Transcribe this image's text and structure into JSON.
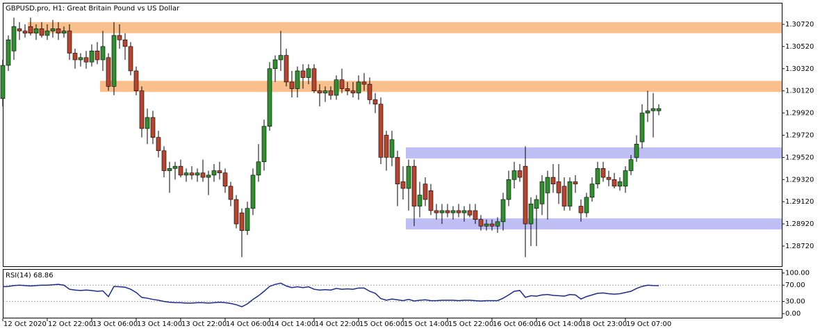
{
  "chart_data": {
    "type": "candlestick",
    "title": "GBPUSD.pro, H1:  Great Britain Pound vs US Dollar",
    "categories": [
      "12 Oct 2020",
      null,
      null,
      null,
      null,
      null,
      null,
      null,
      "12 Oct 22:00",
      null,
      null,
      null,
      null,
      null,
      null,
      null,
      "13 Oct 06:00",
      null,
      null,
      null,
      null,
      null,
      null,
      null,
      "13 Oct 14:00",
      null,
      null,
      null,
      null,
      null,
      null,
      null,
      "13 Oct 22:00",
      null,
      null,
      null,
      null,
      null,
      null,
      null,
      "14 Oct 06:00",
      null,
      null,
      null,
      null,
      null,
      null,
      null,
      "14 Oct 14:00",
      null,
      null,
      null,
      null,
      null,
      null,
      null,
      "14 Oct 22:00",
      null,
      null,
      null,
      null,
      null,
      null,
      null,
      "15 Oct 06:00",
      null,
      null,
      null,
      null,
      null,
      null,
      null,
      "15 Oct 14:00",
      null,
      null,
      null,
      null,
      null,
      null,
      null,
      "15 Oct 22:00",
      null,
      null,
      null,
      null,
      null,
      null,
      null,
      "16 Oct 06:00",
      null,
      null,
      null,
      null,
      null,
      null,
      null,
      "16 Oct 14:00",
      null,
      null,
      null,
      null,
      null,
      null,
      null,
      "18 Oct 23:00",
      null,
      null,
      null,
      null,
      null,
      null,
      null,
      "19 Oct 07:00",
      null,
      null,
      null,
      null,
      null,
      null
    ],
    "open": [
      1.3005,
      1.3035,
      1.3048,
      1.3068,
      1.3066,
      1.307,
      1.3064,
      1.3068,
      1.3062,
      1.3066,
      1.3068,
      1.3064,
      1.3066,
      1.3046,
      1.304,
      1.3042,
      1.3038,
      1.3048,
      1.304,
      1.3042,
      1.3016,
      1.3062,
      1.3058,
      1.3052,
      1.303,
      1.3012,
      1.2978,
      1.2988,
      1.297,
      1.2958,
      1.294,
      1.2942,
      1.2944,
      1.2936,
      1.2938,
      1.2936,
      1.2938,
      1.2934,
      1.2936,
      1.294,
      1.2938,
      1.2926,
      1.2914,
      1.2902,
      1.2886,
      1.2906,
      1.2936,
      1.2948,
      1.298,
      1.3032,
      1.304,
      1.3044,
      1.302,
      1.3014,
      1.303,
      1.3024,
      1.3032,
      1.3012,
      1.301,
      1.3012,
      1.3008,
      1.3022,
      1.3014,
      1.3012,
      1.301,
      1.302,
      1.3018,
      1.3004,
      1.3,
      1.2972,
      1.2952,
      1.2952,
      1.293,
      1.2924,
      1.2944,
      1.2908,
      1.2928,
      1.2922,
      1.2904,
      1.2902,
      1.2904,
      1.2902,
      1.2904,
      1.2902,
      1.2904,
      1.2904,
      1.2896,
      1.289,
      1.2892,
      1.289,
      1.2894,
      1.2914,
      1.2932,
      1.294,
      1.2944,
      1.2892,
      1.2906,
      1.291,
      1.292,
      1.2934,
      1.293,
      1.2926,
      1.2908,
      1.293,
      1.2908,
      1.2902,
      1.2916,
      1.2928,
      1.2942,
      1.2934,
      1.2932,
      1.2926,
      1.2926,
      1.294,
      1.2952,
      1.2966,
      1.2992,
      1.2994,
      1.2994
    ],
    "high": [
      1.304,
      1.3062,
      1.3078,
      1.3074,
      1.3072,
      1.3078,
      1.3072,
      1.3074,
      1.3072,
      1.3076,
      1.3074,
      1.307,
      1.3072,
      1.305,
      1.3046,
      1.3048,
      1.3054,
      1.3056,
      1.3066,
      1.3046,
      1.3074,
      1.3072,
      1.3064,
      1.3056,
      1.3034,
      1.3016,
      1.2996,
      1.2994,
      1.2976,
      1.2962,
      1.2948,
      1.2948,
      1.295,
      1.2942,
      1.2944,
      1.2942,
      1.295,
      1.294,
      1.2946,
      1.2948,
      1.2942,
      1.293,
      1.2918,
      1.2906,
      1.2912,
      1.2942,
      1.2964,
      1.2986,
      1.3038,
      1.3044,
      1.3066,
      1.305,
      1.303,
      1.3034,
      1.3036,
      1.3036,
      1.3036,
      1.3018,
      1.3016,
      1.3016,
      1.3026,
      1.3032,
      1.302,
      1.302,
      1.3026,
      1.3028,
      1.3024,
      1.301,
      1.3006,
      1.2976,
      1.2976,
      1.2958,
      1.2944,
      1.295,
      1.295,
      1.293,
      1.2934,
      1.2928,
      1.291,
      1.291,
      1.291,
      1.2908,
      1.291,
      1.2908,
      1.291,
      1.291,
      1.29,
      1.2896,
      1.2896,
      1.2898,
      1.292,
      1.294,
      1.2948,
      1.2946,
      1.2962,
      1.2916,
      1.2918,
      1.2936,
      1.294,
      1.2946,
      1.2946,
      1.2934,
      1.2934,
      1.2936,
      1.2914,
      1.292,
      1.2934,
      1.2948,
      1.2948,
      1.294,
      1.2938,
      1.2934,
      1.2944,
      1.2954,
      1.2972,
      1.3,
      1.3012,
      1.301,
      1.3
    ],
    "low": [
      1.2998,
      1.303,
      1.304,
      1.3058,
      1.306,
      1.3062,
      1.3058,
      1.306,
      1.3058,
      1.306,
      1.3058,
      1.306,
      1.304,
      1.3032,
      1.3034,
      1.3032,
      1.3034,
      1.3036,
      1.303,
      1.3012,
      1.3008,
      1.305,
      1.304,
      1.3026,
      1.3008,
      1.297,
      1.2964,
      1.2964,
      1.2952,
      1.2934,
      1.292,
      1.2932,
      1.2934,
      1.293,
      1.2932,
      1.293,
      1.293,
      1.2918,
      1.293,
      1.2932,
      1.292,
      1.2908,
      1.2888,
      1.2862,
      1.2882,
      1.29,
      1.293,
      1.294,
      1.2976,
      1.302,
      1.303,
      1.3016,
      1.3006,
      1.3006,
      1.3014,
      1.3018,
      1.301,
      1.2998,
      1.3002,
      1.3004,
      1.3004,
      1.301,
      1.3008,
      1.3006,
      1.3004,
      1.3012,
      1.3,
      1.2992,
      1.2946,
      1.294,
      1.2944,
      1.2908,
      1.2914,
      1.2904,
      1.289,
      1.2898,
      1.2908,
      1.29,
      1.2896,
      1.2892,
      1.2898,
      1.2896,
      1.2898,
      1.2894,
      1.2898,
      1.2892,
      1.2886,
      1.2886,
      1.2886,
      1.2884,
      1.2886,
      1.2908,
      1.2924,
      1.293,
      1.2862,
      1.2872,
      1.2872,
      1.29,
      1.2896,
      1.292,
      1.291,
      1.2904,
      1.2904,
      1.292,
      1.2894,
      1.2898,
      1.2912,
      1.2924,
      1.293,
      1.2926,
      1.2924,
      1.2922,
      1.292,
      1.2936,
      1.2948,
      1.296,
      1.2984,
      1.297,
      1.299
    ],
    "close": [
      1.3035,
      1.3058,
      1.307,
      1.3066,
      1.3064,
      1.3064,
      1.3068,
      1.3062,
      1.3066,
      1.3068,
      1.3064,
      1.3066,
      1.3046,
      1.304,
      1.3042,
      1.3038,
      1.3048,
      1.304,
      1.3052,
      1.3016,
      1.3062,
      1.3058,
      1.3052,
      1.303,
      1.3012,
      1.2978,
      1.2988,
      1.297,
      1.2958,
      1.294,
      1.2942,
      1.2944,
      1.2936,
      1.2938,
      1.2936,
      1.2938,
      1.2934,
      1.2936,
      1.294,
      1.2938,
      1.2926,
      1.2914,
      1.2892,
      1.2886,
      1.2906,
      1.2936,
      1.2948,
      1.298,
      1.3032,
      1.304,
      1.3044,
      1.302,
      1.3014,
      1.303,
      1.3024,
      1.3032,
      1.3012,
      1.301,
      1.3012,
      1.3008,
      1.3022,
      1.3014,
      1.3012,
      1.301,
      1.302,
      1.3018,
      1.3004,
      1.3,
      1.2952,
      1.2952,
      1.2968,
      1.2928,
      1.2924,
      1.2944,
      1.2908,
      1.2918,
      1.2914,
      1.2904,
      1.2902,
      1.2904,
      1.2902,
      1.2904,
      1.2902,
      1.2904,
      1.29,
      1.2896,
      1.289,
      1.2892,
      1.289,
      1.2894,
      1.2914,
      1.2932,
      1.294,
      1.2934,
      1.2892,
      1.291,
      1.2914,
      1.293,
      1.2934,
      1.2928,
      1.292,
      1.2908,
      1.293,
      1.2928,
      1.2902,
      1.2916,
      1.2928,
      1.2942,
      1.2934,
      1.2932,
      1.2926,
      1.293,
      1.294,
      1.295,
      1.2964,
      1.2992,
      1.2994,
      1.2996,
      1.2996
    ],
    "bull_color": "#2f8f2f",
    "bear_color": "#b8452f",
    "ylim": [
      1.28538,
      1.30908
    ],
    "yticks": [
      {
        "value": 1.3072,
        "label": "1.30720"
      },
      {
        "value": 1.3052,
        "label": "1.30520"
      },
      {
        "value": 1.3032,
        "label": "1.30320"
      },
      {
        "value": 1.3012,
        "label": "1.30120"
      },
      {
        "value": 1.2992,
        "label": "1.29920"
      },
      {
        "value": 1.2972,
        "label": "1.29720"
      },
      {
        "value": 1.2952,
        "label": "1.29520"
      },
      {
        "value": 1.2932,
        "label": "1.29320"
      },
      {
        "value": 1.2912,
        "label": "1.29120"
      },
      {
        "value": 1.2892,
        "label": "1.28920"
      },
      {
        "value": 1.2872,
        "label": "1.28720"
      }
    ],
    "zones": [
      {
        "ylim": [
          1.3064,
          1.3074
        ],
        "start": 5,
        "color": "#f8b57a"
      },
      {
        "ylim": [
          1.3011,
          1.3021
        ],
        "start": 18,
        "color": "#f8b57a"
      },
      {
        "ylim": [
          1.2951,
          1.2961
        ],
        "start": 73,
        "color": "#b4b4f4"
      },
      {
        "ylim": [
          1.2887,
          1.2897
        ],
        "start": 73,
        "color": "#b4b4f4"
      }
    ],
    "indicator": {
      "label": "RSI(14) 68.86",
      "color": "#1c2a8c",
      "ylim": [
        -10,
        108
      ],
      "yticks": [
        {
          "value": 100,
          "label": "100.00"
        },
        {
          "value": 70,
          "label": "70.00"
        },
        {
          "value": 30,
          "label": "30.00"
        },
        {
          "value": 0,
          "label": "0.00"
        }
      ],
      "levels": [
        70,
        30
      ],
      "values": [
        66,
        67,
        69,
        70,
        69,
        68,
        69,
        70,
        70,
        71,
        72,
        70,
        60,
        58,
        57,
        58,
        57,
        55,
        56,
        42,
        67,
        66,
        65,
        60,
        52,
        40,
        38,
        35,
        33,
        30,
        28,
        27,
        27,
        26,
        26,
        27,
        27,
        26,
        27,
        28,
        27,
        25,
        22,
        17,
        24,
        35,
        44,
        55,
        67,
        72,
        75,
        68,
        64,
        66,
        64,
        66,
        60,
        58,
        59,
        58,
        62,
        60,
        61,
        60,
        63,
        63,
        55,
        50,
        37,
        33,
        36,
        34,
        32,
        35,
        31,
        33,
        34,
        32,
        32,
        33,
        33,
        33,
        32,
        33,
        33,
        32,
        31,
        32,
        32,
        32,
        38,
        46,
        55,
        57,
        40,
        44,
        43,
        46,
        47,
        45,
        44,
        43,
        47,
        46,
        36,
        42,
        46,
        50,
        51,
        49,
        48,
        49,
        52,
        55,
        62,
        67,
        70,
        69,
        68.86
      ]
    }
  }
}
